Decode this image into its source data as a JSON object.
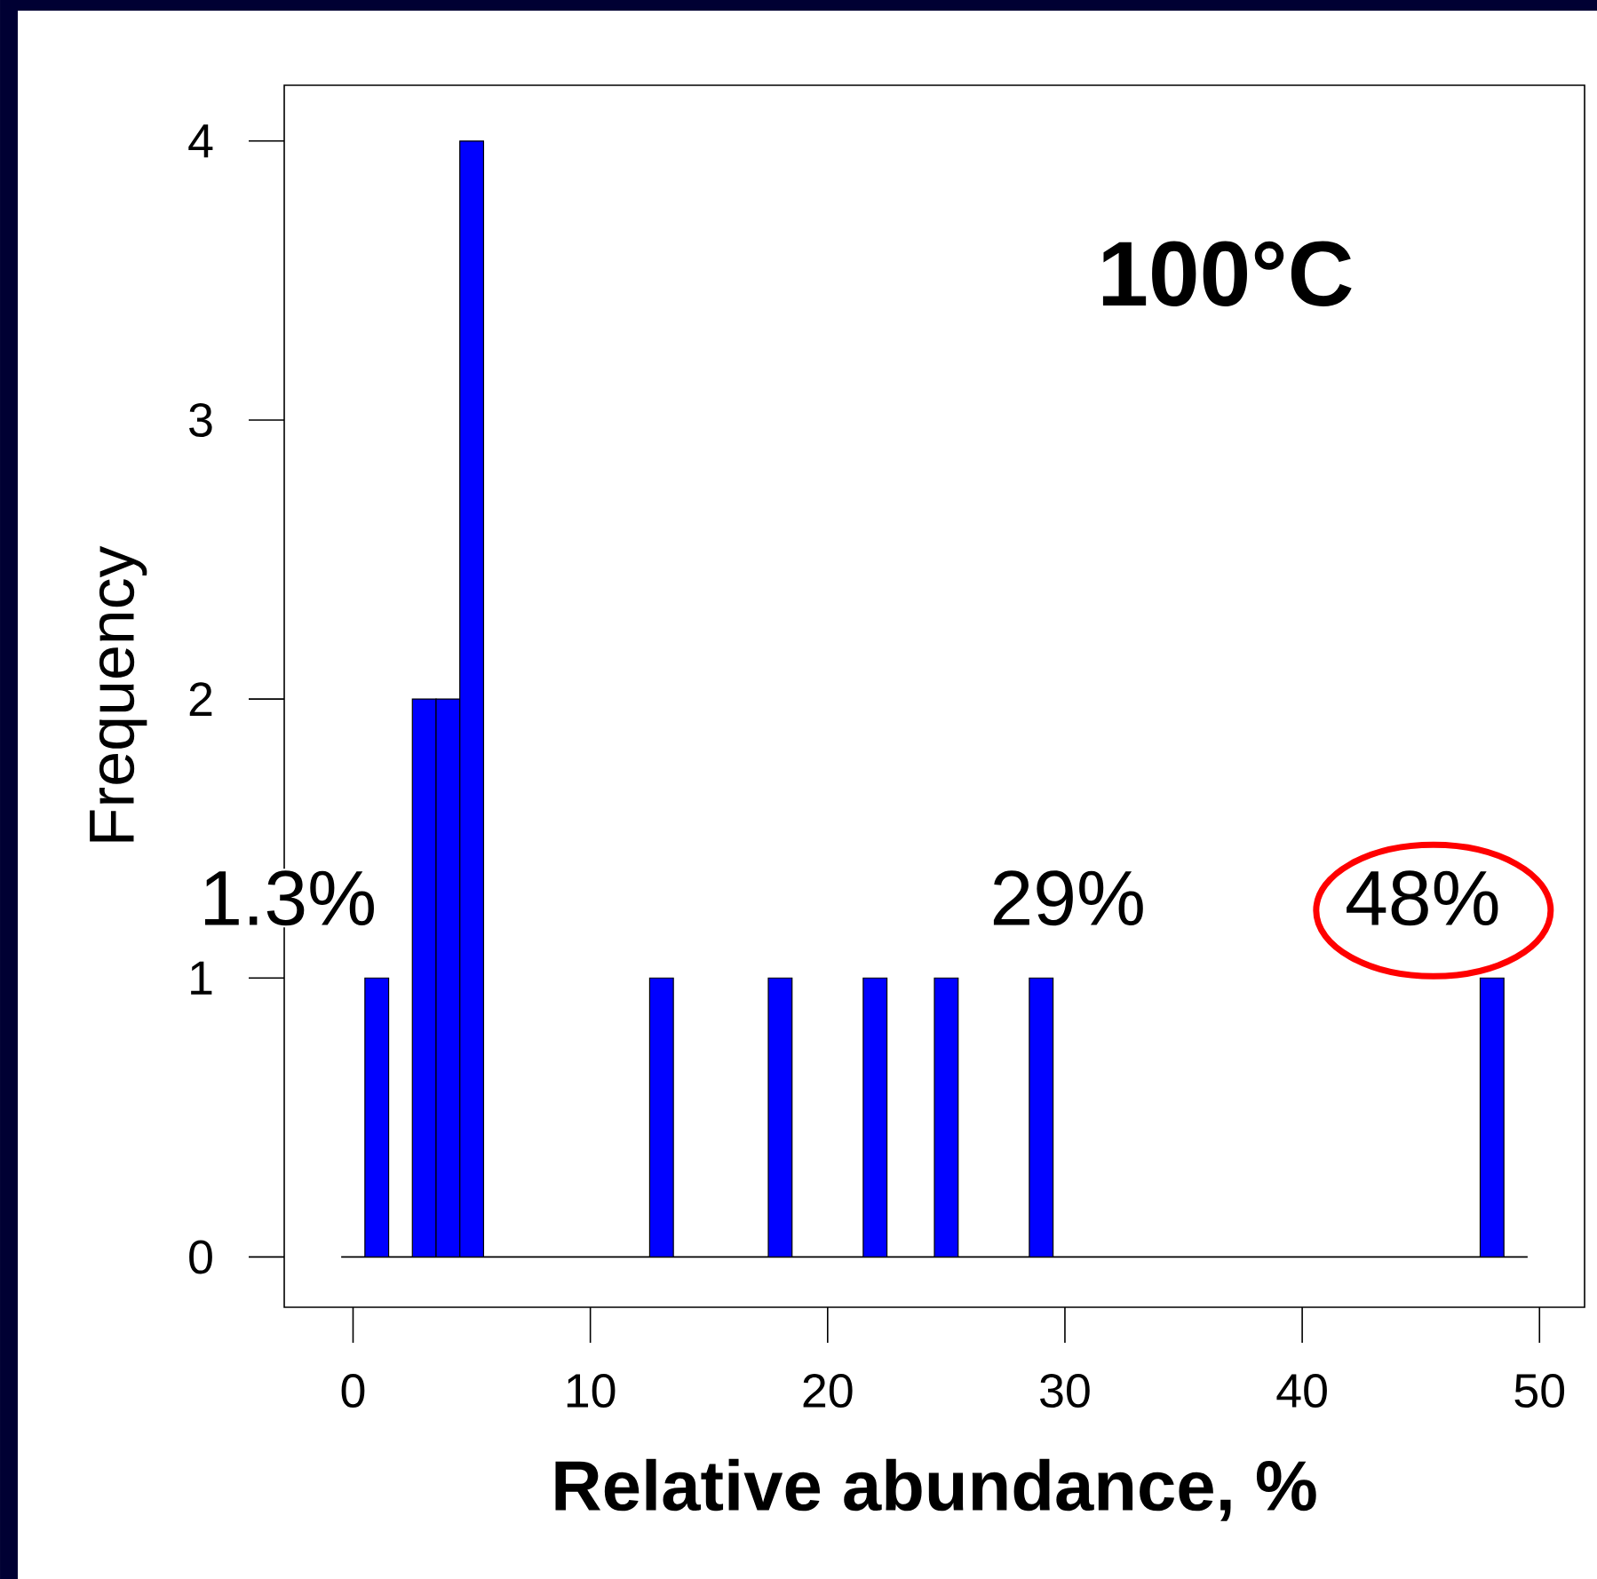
{
  "chart_data": {
    "type": "histogram",
    "title": "100°C",
    "xlabel": "Relative abundance, %",
    "ylabel": "Frequency",
    "bins": [
      -0.5,
      0.5,
      1.5,
      2.5,
      3.5,
      4.5,
      5.5,
      6.5,
      7.5,
      8.5,
      9.5,
      10.5,
      11.5,
      12.5,
      13.5,
      14.5,
      15.5,
      16.5,
      17.5,
      18.5,
      19.5,
      20.5,
      21.5,
      22.5,
      23.5,
      24.5,
      25.5,
      26.5,
      27.5,
      28.5,
      29.5,
      30.5,
      31.5,
      32.5,
      33.5,
      34.5,
      35.5,
      36.5,
      37.5,
      38.5,
      39.5,
      40.5,
      41.5,
      42.5,
      43.5,
      44.5,
      45.5,
      46.5,
      47.5,
      48.5,
      49.5
    ],
    "values": [
      0,
      1,
      0,
      2,
      2,
      4,
      0,
      0,
      0,
      0,
      0,
      0,
      0,
      1,
      0,
      0,
      0,
      0,
      1,
      0,
      0,
      0,
      1,
      0,
      0,
      1,
      0,
      0,
      0,
      1,
      0,
      0,
      0,
      0,
      0,
      0,
      0,
      0,
      0,
      0,
      0,
      0,
      0,
      0,
      0,
      0,
      0,
      0,
      1,
      0
    ],
    "color": "#0000ff",
    "xlim": [
      -2.9,
      51.9
    ],
    "ylim": [
      -0.18,
      4.2
    ],
    "xticks": [
      0,
      10,
      20,
      30,
      40,
      50
    ],
    "yticks": [
      0,
      1,
      2,
      3,
      4
    ],
    "annotations": [
      {
        "text": "1.3%",
        "x": 1,
        "y": 1
      },
      {
        "text": "29%",
        "x": 29,
        "y": 1
      },
      {
        "text": "48%",
        "x": 48,
        "y": 1
      }
    ]
  }
}
